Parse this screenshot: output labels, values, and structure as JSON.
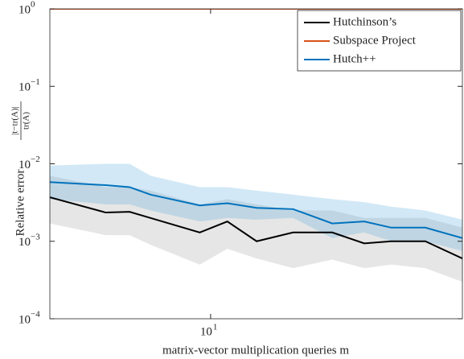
{
  "chart_data": {
    "type": "line",
    "xlabel": "matrix-vector multiplication queries m",
    "ylabel": "Relative error",
    "ylabel_numerator": "|t−tr(A)|",
    "ylabel_denominator": "tr(A)",
    "x": [
      4,
      5.5,
      6.3,
      7.1,
      9.4,
      11,
      13,
      16,
      20,
      24,
      28,
      34,
      42
    ],
    "xlim": [
      4,
      42
    ],
    "ylim": [
      0.0001,
      1
    ],
    "xlog": true,
    "ylog": true,
    "xticks": [
      {
        "value": 10,
        "label": "10",
        "exponent": "1"
      }
    ],
    "yticks": [
      {
        "value": 0.0001,
        "label": "10",
        "exponent": "−4"
      },
      {
        "value": 0.001,
        "label": "10",
        "exponent": "−3"
      },
      {
        "value": 0.01,
        "label": "10",
        "exponent": "−2"
      },
      {
        "value": 0.1,
        "label": "10",
        "exponent": "−1"
      },
      {
        "value": 1,
        "label": "10",
        "exponent": "0"
      }
    ],
    "legend_position": "upper right",
    "series": [
      {
        "name": "Hutchinson’s",
        "color": "#000000",
        "band_color": "#9a9a9a",
        "values": [
          0.0037,
          0.00235,
          0.0024,
          0.002,
          0.0013,
          0.0018,
          0.001,
          0.0013,
          0.0013,
          0.00094,
          0.001,
          0.001,
          0.0006
        ],
        "band_upper": [
          0.007,
          0.005,
          0.005,
          0.0045,
          0.003,
          0.0035,
          0.003,
          0.0025,
          0.0025,
          0.002,
          0.002,
          0.002,
          0.0015
        ],
        "band_lower": [
          0.0017,
          0.0012,
          0.0012,
          0.0009,
          0.0005,
          0.0008,
          0.0006,
          0.00045,
          0.00058,
          0.00045,
          0.0005,
          0.00045,
          0.0003
        ]
      },
      {
        "name": "Subspace Project",
        "color": "#d95319",
        "values": [
          1,
          1,
          1,
          1,
          1,
          1,
          1,
          1,
          1,
          1,
          1,
          1,
          1
        ]
      },
      {
        "name": "Hutch++",
        "color": "#0072bd",
        "band_color": "#4da3dd",
        "values": [
          0.0058,
          0.0053,
          0.005,
          0.004,
          0.0029,
          0.0031,
          0.0027,
          0.0026,
          0.0017,
          0.0018,
          0.0015,
          0.0015,
          0.0011
        ],
        "band_upper": [
          0.0095,
          0.01,
          0.01,
          0.007,
          0.005,
          0.005,
          0.0045,
          0.004,
          0.0035,
          0.0032,
          0.0028,
          0.0025,
          0.0019
        ],
        "band_lower": [
          0.0035,
          0.003,
          0.003,
          0.0025,
          0.0018,
          0.002,
          0.0019,
          0.002,
          0.0011,
          0.0013,
          0.001,
          0.001,
          0.00075
        ]
      }
    ]
  }
}
